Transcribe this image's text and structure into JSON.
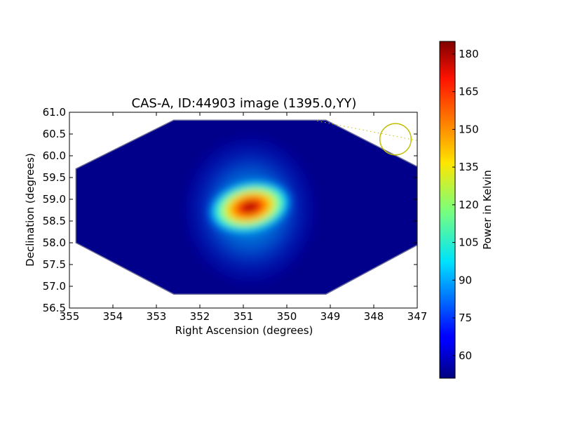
{
  "chart_data": {
    "type": "heatmap",
    "title": "CAS-A, ID:44903 image (1395.0,YY)",
    "xlabel": "Right Ascension (degrees)",
    "ylabel": "Declination (degrees)",
    "xlim": [
      355,
      347
    ],
    "ylim": [
      56.5,
      61.0
    ],
    "x_ticks": [
      355,
      354,
      353,
      352,
      351,
      350,
      349,
      348,
      347
    ],
    "x_tick_labels": [
      "355",
      "354",
      "353",
      "352",
      "351",
      "350",
      "349",
      "348",
      "347"
    ],
    "y_ticks": [
      56.5,
      57.0,
      57.5,
      58.0,
      58.5,
      59.0,
      59.5,
      60.0,
      60.5,
      61.0
    ],
    "y_tick_labels": [
      "56.5",
      "57.0",
      "57.5",
      "58.0",
      "58.5",
      "59.0",
      "59.5",
      "60.0",
      "60.5",
      "61.0"
    ],
    "colormap": "jet",
    "colorbar": {
      "label": "Power in Kelvin",
      "range": [
        51,
        185
      ],
      "ticks": [
        60,
        75,
        90,
        105,
        120,
        135,
        150,
        165,
        180
      ],
      "tick_labels": [
        "60",
        "75",
        "90",
        "105",
        "120",
        "135",
        "150",
        "165",
        "180"
      ]
    },
    "background_level": 52,
    "footprint_ra_dec": [
      [
        352.6,
        60.82
      ],
      [
        349.1,
        60.82
      ],
      [
        347.0,
        59.75
      ],
      [
        347.0,
        57.95
      ],
      [
        349.1,
        56.82
      ],
      [
        352.6,
        56.82
      ],
      [
        354.85,
        58.0
      ],
      [
        354.85,
        59.7
      ]
    ],
    "source": {
      "name": "CAS-A",
      "peak_ra": 350.85,
      "peak_dec": 58.82,
      "peak_value": 185,
      "extent_ra": 1.3,
      "extent_dec": 0.85
    },
    "beam_circle": {
      "ra": 347.5,
      "dec": 60.38,
      "radius_deg": 0.36,
      "color": "#bfbf00"
    },
    "beam_line": [
      [
        349.3,
        60.8
      ],
      [
        347.0,
        60.35
      ]
    ]
  }
}
